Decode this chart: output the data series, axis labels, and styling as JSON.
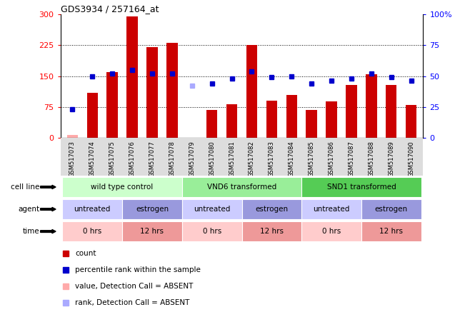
{
  "title": "GDS3934 / 257164_at",
  "samples": [
    "GSM517073",
    "GSM517074",
    "GSM517075",
    "GSM517076",
    "GSM517077",
    "GSM517078",
    "GSM517079",
    "GSM517080",
    "GSM517081",
    "GSM517082",
    "GSM517083",
    "GSM517084",
    "GSM517085",
    "GSM517086",
    "GSM517087",
    "GSM517088",
    "GSM517089",
    "GSM517090"
  ],
  "count_values": [
    8,
    110,
    160,
    295,
    220,
    230,
    0,
    68,
    82,
    225,
    90,
    105,
    68,
    88,
    128,
    155,
    128,
    80
  ],
  "count_absent": [
    true,
    false,
    false,
    false,
    false,
    false,
    true,
    false,
    false,
    false,
    false,
    false,
    false,
    false,
    false,
    false,
    false,
    false
  ],
  "rank_values": [
    23,
    50,
    52,
    55,
    52,
    52,
    42,
    44,
    48,
    54,
    49,
    50,
    44,
    46,
    48,
    52,
    49,
    46
  ],
  "rank_absent": [
    false,
    false,
    false,
    false,
    false,
    false,
    true,
    false,
    false,
    false,
    false,
    false,
    false,
    false,
    false,
    false,
    false,
    false
  ],
  "bar_color_present": "#cc0000",
  "bar_color_absent": "#ffaaaa",
  "rank_color_present": "#0000cc",
  "rank_color_absent": "#aaaaff",
  "ylim_left": [
    0,
    300
  ],
  "ylim_right": [
    0,
    100
  ],
  "yticks_left": [
    0,
    75,
    150,
    225,
    300
  ],
  "yticks_right": [
    0,
    25,
    50,
    75,
    100
  ],
  "ytick_right_labels": [
    "0",
    "25",
    "50",
    "75",
    "100%"
  ],
  "bar_width": 0.55,
  "cell_line_groups": [
    {
      "label": "wild type control",
      "start": 0,
      "end": 5,
      "color": "#ccffcc"
    },
    {
      "label": "VND6 transformed",
      "start": 6,
      "end": 11,
      "color": "#99ee99"
    },
    {
      "label": "SND1 transformed",
      "start": 12,
      "end": 17,
      "color": "#55cc55"
    }
  ],
  "agent_groups": [
    {
      "label": "untreated",
      "start": 0,
      "end": 2,
      "color": "#ccccff"
    },
    {
      "label": "estrogen",
      "start": 3,
      "end": 5,
      "color": "#9999dd"
    },
    {
      "label": "untreated",
      "start": 6,
      "end": 8,
      "color": "#ccccff"
    },
    {
      "label": "estrogen",
      "start": 9,
      "end": 11,
      "color": "#9999dd"
    },
    {
      "label": "untreated",
      "start": 12,
      "end": 14,
      "color": "#ccccff"
    },
    {
      "label": "estrogen",
      "start": 15,
      "end": 17,
      "color": "#9999dd"
    }
  ],
  "time_groups": [
    {
      "label": "0 hrs",
      "start": 0,
      "end": 2,
      "color": "#ffcccc"
    },
    {
      "label": "12 hrs",
      "start": 3,
      "end": 5,
      "color": "#ee9999"
    },
    {
      "label": "0 hrs",
      "start": 6,
      "end": 8,
      "color": "#ffcccc"
    },
    {
      "label": "12 hrs",
      "start": 9,
      "end": 11,
      "color": "#ee9999"
    },
    {
      "label": "0 hrs",
      "start": 12,
      "end": 14,
      "color": "#ffcccc"
    },
    {
      "label": "12 hrs",
      "start": 15,
      "end": 17,
      "color": "#ee9999"
    }
  ],
  "legend_items": [
    {
      "color": "#cc0000",
      "label": "count",
      "marker": "s"
    },
    {
      "color": "#0000cc",
      "label": "percentile rank within the sample",
      "marker": "s"
    },
    {
      "color": "#ffaaaa",
      "label": "value, Detection Call = ABSENT",
      "marker": "s"
    },
    {
      "color": "#aaaaff",
      "label": "rank, Detection Call = ABSENT",
      "marker": "s"
    }
  ],
  "row_labels": [
    "cell line",
    "agent",
    "time"
  ],
  "background_color": "#ffffff",
  "xticklabel_bg": "#dddddd",
  "grid_yticks": [
    75,
    150,
    225
  ]
}
